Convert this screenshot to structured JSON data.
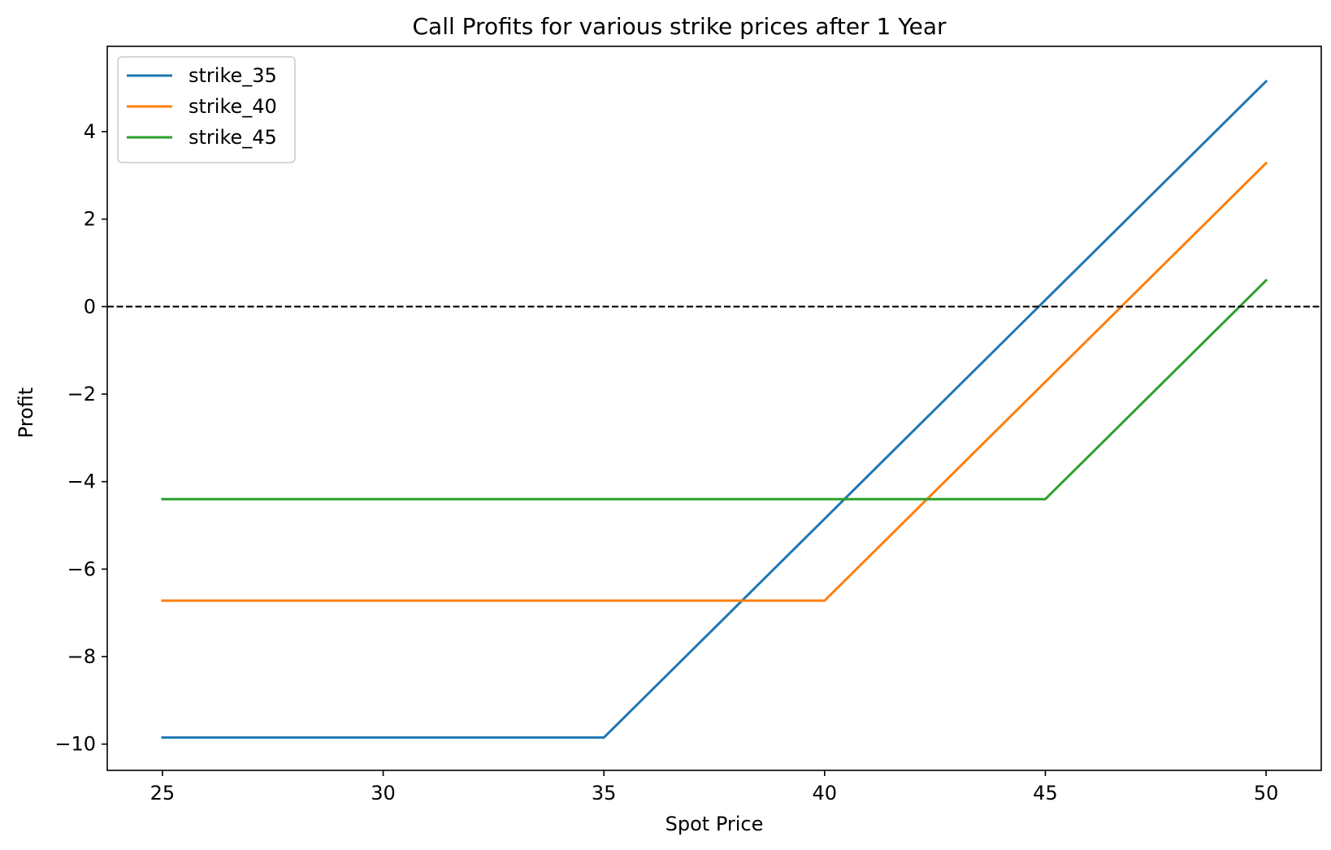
{
  "chart_data": {
    "type": "line",
    "title": "Call Profits for various strike prices after 1 Year",
    "xlabel": "Spot Price",
    "ylabel": "Profit",
    "xlim": [
      23.75,
      51.25
    ],
    "ylim": [
      -10.6,
      5.95
    ],
    "xticks": [
      25,
      30,
      35,
      40,
      45,
      50
    ],
    "xtick_labels": [
      "25",
      "30",
      "35",
      "40",
      "45",
      "50"
    ],
    "yticks": [
      4,
      2,
      0,
      -2,
      -4,
      -6,
      -8,
      -10
    ],
    "ytick_labels": [
      "4",
      "2",
      "0",
      "−2",
      "−4",
      "−6",
      "−8",
      "−10"
    ],
    "grid": false,
    "legend": "upper left",
    "reference_line": {
      "y": 0,
      "style": "dashed",
      "color": "#000000"
    },
    "series": [
      {
        "name": "strike_35",
        "color": "#1f77b4",
        "x": [
          25,
          35,
          50
        ],
        "y": [
          -9.85,
          -9.85,
          5.15
        ]
      },
      {
        "name": "strike_40",
        "color": "#ff7f0e",
        "x": [
          25,
          40,
          50
        ],
        "y": [
          -6.72,
          -6.72,
          3.28
        ]
      },
      {
        "name": "strike_45",
        "color": "#2ca02c",
        "x": [
          25,
          45,
          50
        ],
        "y": [
          -4.4,
          -4.4,
          0.6
        ]
      }
    ]
  }
}
